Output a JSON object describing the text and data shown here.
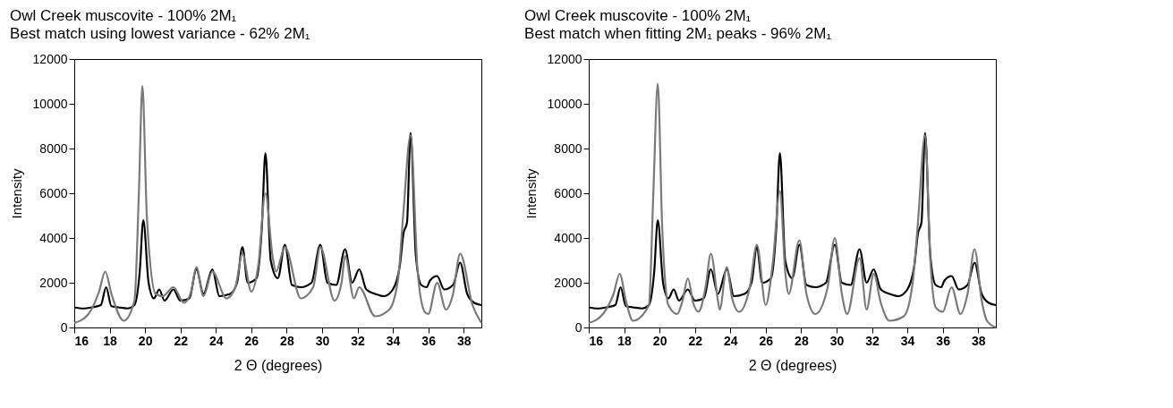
{
  "chart_data": [
    {
      "type": "line",
      "title": "Owl Creek muscovite - 100% 2M₁",
      "subtitle": "Best match using lowest variance - 62% 2M₁",
      "xlabel": "2 Θ (degrees)",
      "ylabel": "Intensity",
      "xlim": [
        16,
        39
      ],
      "xticks": [
        16,
        18,
        20,
        22,
        24,
        26,
        28,
        30,
        32,
        34,
        36,
        38
      ],
      "ylim": [
        0,
        12000
      ],
      "yticks": [
        0,
        2000,
        4000,
        6000,
        8000,
        10000,
        12000
      ],
      "grid": false,
      "series": [
        {
          "color": "#000000",
          "x": [
            16,
            16.5,
            17,
            17.5,
            17.8,
            18.1,
            18.5,
            19,
            19.4,
            19.7,
            19.9,
            20.2,
            20.5,
            20.8,
            21.1,
            21.6,
            22,
            22.5,
            22.9,
            23.3,
            23.8,
            24.2,
            24.8,
            25.2,
            25.5,
            25.8,
            26.3,
            26.6,
            26.8,
            27.1,
            27.5,
            27.9,
            28.3,
            28.8,
            29.4,
            29.9,
            30.3,
            30.8,
            31.3,
            31.7,
            32.1,
            32.5,
            33,
            33.5,
            34,
            34.4,
            34.6,
            34.8,
            35,
            35.3,
            35.6,
            35.9,
            36.1,
            36.5,
            36.9,
            37.4,
            37.8,
            38.2,
            38.6,
            39
          ],
          "values": [
            900,
            850,
            900,
            1000,
            1800,
            950,
            900,
            850,
            1000,
            2500,
            4800,
            2000,
            1300,
            1700,
            1200,
            1700,
            1200,
            1300,
            2600,
            1500,
            2600,
            1400,
            1500,
            2000,
            3600,
            2000,
            2200,
            4500,
            7800,
            3000,
            2200,
            3700,
            1900,
            1800,
            2000,
            3700,
            2000,
            1900,
            3500,
            2000,
            2600,
            1700,
            1500,
            1400,
            1700,
            2800,
            4200,
            4700,
            8700,
            3200,
            1900,
            1800,
            2100,
            2300,
            1700,
            1900,
            2900,
            1500,
            1100,
            1000
          ]
        },
        {
          "color": "#7a7a7a",
          "x": [
            16,
            16.8,
            17.4,
            17.75,
            18.1,
            18.8,
            19.4,
            19.65,
            19.85,
            20.1,
            20.6,
            21,
            21.6,
            22.2,
            22.6,
            22.9,
            23.3,
            23.8,
            24.6,
            25.1,
            25.5,
            26,
            26.4,
            26.8,
            27.2,
            27.4,
            27.9,
            28.8,
            29.5,
            29.9,
            30.7,
            31.1,
            31.3,
            31.8,
            32.1,
            33,
            33.8,
            34.3,
            34.6,
            35,
            35.4,
            35.8,
            36,
            36.5,
            37,
            37.4,
            37.8,
            38.5,
            39
          ],
          "values": [
            200,
            600,
            1600,
            2500,
            1500,
            300,
            1200,
            6000,
            10800,
            5000,
            1500,
            1400,
            1800,
            1100,
            1600,
            2700,
            1400,
            2500,
            1300,
            1800,
            3300,
            1600,
            2800,
            6000,
            3200,
            2500,
            3600,
            1300,
            1800,
            3600,
            1200,
            2000,
            3200,
            1300,
            1800,
            500,
            800,
            2200,
            5200,
            8600,
            2500,
            700,
            600,
            2000,
            800,
            1500,
            3300,
            1000,
            200
          ]
        }
      ]
    },
    {
      "type": "line",
      "title": "Owl Creek muscovite - 100% 2M₁",
      "subtitle": "Best match when fitting 2M₁ peaks - 96% 2M₁",
      "xlabel": "2 Θ (degrees)",
      "ylabel": "Intensity",
      "xlim": [
        16,
        39
      ],
      "xticks": [
        16,
        18,
        20,
        22,
        24,
        26,
        28,
        30,
        32,
        34,
        36,
        38
      ],
      "ylim": [
        0,
        12000
      ],
      "yticks": [
        0,
        2000,
        4000,
        6000,
        8000,
        10000,
        12000
      ],
      "grid": false,
      "series": [
        {
          "color": "#000000",
          "x": [
            16,
            16.5,
            17,
            17.5,
            17.8,
            18.1,
            18.5,
            19,
            19.4,
            19.7,
            19.9,
            20.2,
            20.5,
            20.8,
            21.1,
            21.6,
            22,
            22.5,
            22.9,
            23.3,
            23.8,
            24.2,
            24.8,
            25.2,
            25.5,
            25.8,
            26.3,
            26.6,
            26.8,
            27.1,
            27.5,
            27.9,
            28.3,
            28.8,
            29.4,
            29.9,
            30.3,
            30.8,
            31.3,
            31.7,
            32.1,
            32.5,
            33,
            33.5,
            34,
            34.4,
            34.6,
            34.8,
            35,
            35.3,
            35.6,
            35.9,
            36.1,
            36.5,
            36.9,
            37.4,
            37.8,
            38.2,
            38.6,
            39
          ],
          "values": [
            900,
            850,
            900,
            1000,
            1800,
            950,
            900,
            850,
            1000,
            2500,
            4800,
            2000,
            1300,
            1700,
            1200,
            1700,
            1200,
            1300,
            2600,
            1500,
            2600,
            1400,
            1500,
            2000,
            3600,
            2000,
            2200,
            4500,
            7800,
            3000,
            2200,
            3700,
            1900,
            1800,
            2000,
            3700,
            2000,
            1900,
            3500,
            2000,
            2600,
            1700,
            1500,
            1400,
            1700,
            2800,
            4200,
            4700,
            8700,
            3200,
            1900,
            1800,
            2100,
            2300,
            1700,
            1900,
            2900,
            1500,
            1100,
            1000
          ]
        },
        {
          "color": "#7a7a7a",
          "x": [
            16,
            16.8,
            17.4,
            17.75,
            18.1,
            18.5,
            19.4,
            19.65,
            19.9,
            20.15,
            20.5,
            21,
            21.3,
            21.6,
            21.9,
            22.2,
            22.6,
            22.9,
            23.3,
            23.4,
            23.8,
            24.1,
            24.5,
            25.1,
            25.5,
            26,
            26.4,
            26.8,
            27.1,
            27.3,
            27.9,
            28.3,
            28.8,
            29.5,
            29.9,
            30.3,
            30.6,
            31.3,
            31.7,
            32.1,
            32.5,
            33,
            33.8,
            34.3,
            34.6,
            35,
            35.3,
            35.6,
            36,
            36.5,
            37,
            37.4,
            37.8,
            38.2,
            38.5,
            39
          ],
          "values": [
            200,
            600,
            1500,
            2400,
            1200,
            300,
            1000,
            6000,
            10900,
            4500,
            1000,
            600,
            1200,
            2200,
            1100,
            700,
            1800,
            3300,
            1200,
            800,
            2700,
            1300,
            700,
            1800,
            3700,
            1000,
            2900,
            6100,
            2500,
            1500,
            3900,
            1500,
            600,
            1800,
            4000,
            1500,
            600,
            3100,
            800,
            2400,
            1100,
            300,
            500,
            2000,
            4700,
            8600,
            3000,
            900,
            700,
            1800,
            600,
            1500,
            3500,
            1200,
            300,
            0
          ]
        }
      ]
    }
  ]
}
